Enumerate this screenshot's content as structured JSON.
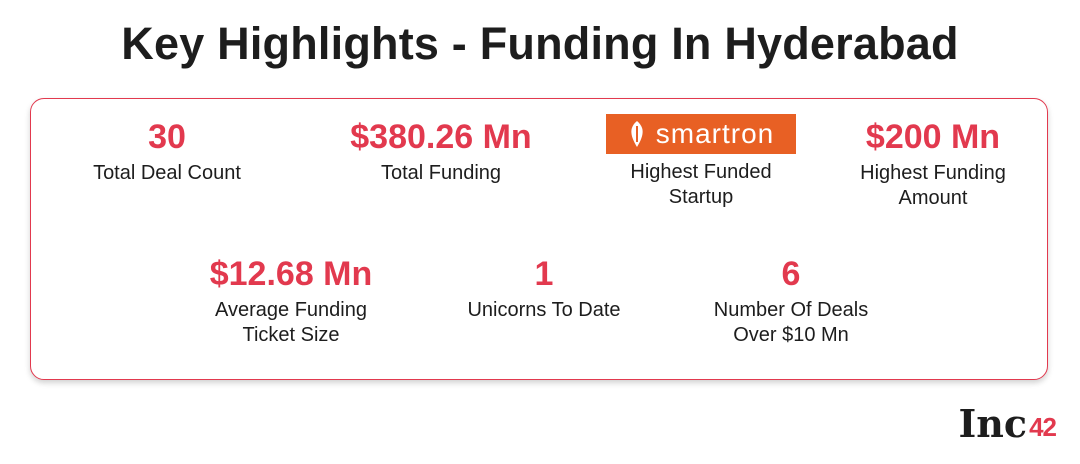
{
  "title": "Key Highlights - Funding In Hyderabad",
  "stats": [
    {
      "value": "30",
      "label_lines": [
        "Total Deal Count"
      ]
    },
    {
      "value": "$380.26 Mn",
      "label_lines": [
        "Total Funding"
      ]
    },
    {
      "logo_text": "smartron",
      "label_lines": [
        "Highest Funded",
        "Startup"
      ]
    },
    {
      "value": "$200 Mn",
      "label_lines": [
        "Highest Funding",
        "Amount"
      ]
    },
    {
      "value": "$12.68 Mn",
      "label_lines": [
        "Average Funding",
        "Ticket Size"
      ]
    },
    {
      "value": "1",
      "label_lines": [
        "Unicorns To Date"
      ]
    },
    {
      "value": "6",
      "label_lines": [
        "Number Of Deals",
        "Over $10 Mn"
      ]
    }
  ],
  "brand": {
    "inc": "Inc",
    "num": "42"
  },
  "colors": {
    "accent": "#e2394e",
    "logo_bg": "#e86024",
    "text": "#1d1d1d"
  },
  "icons": [
    "smartron-leaf-icon"
  ]
}
